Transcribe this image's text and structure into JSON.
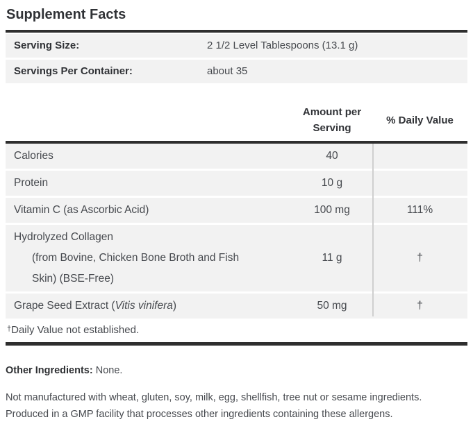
{
  "title": "Supplement Facts",
  "serving_info": {
    "rows": [
      {
        "label": "Serving Size:",
        "value": "2 1/2 Level Tablespoons (13.1 g)"
      },
      {
        "label": "Servings Per Container:",
        "value": "about 35"
      }
    ]
  },
  "facts_table": {
    "headers": {
      "amount": "Amount per Serving",
      "daily_value": "% Daily Value"
    },
    "rows": [
      {
        "name": "Calories",
        "amount": "40",
        "daily_value": ""
      },
      {
        "name": "Protein",
        "amount": "10 g",
        "daily_value": ""
      },
      {
        "name": "Vitamin C (as Ascorbic Acid)",
        "amount": "100 mg",
        "daily_value": "111%"
      },
      {
        "name": "Hydrolyzed Collagen",
        "name_line2": "(from Bovine, Chicken Bone Broth and Fish",
        "name_line3": "Skin) (BSE-Free)",
        "amount": "11 g",
        "daily_value": "†"
      },
      {
        "name_prefix": "Grape Seed Extract (",
        "name_italic": "Vitis vinifera",
        "name_suffix": ")",
        "amount": "50 mg",
        "daily_value": "†"
      }
    ],
    "footnote_symbol": "†",
    "footnote_text": "Daily Value not established."
  },
  "other_ingredients": {
    "label": "Other Ingredients:",
    "value": " None."
  },
  "allergen_statement": "Not manufactured with wheat, gluten, soy, milk, egg, shellfish, tree nut or sesame ingredients. Produced in a GMP facility that processes other ingredients containing these allergens.",
  "colors": {
    "bar": "#2e2e2e",
    "row_background": "#f2f2f2",
    "column_divider": "#cfcfcf",
    "heading_text": "#303236",
    "body_text": "#46494e"
  }
}
